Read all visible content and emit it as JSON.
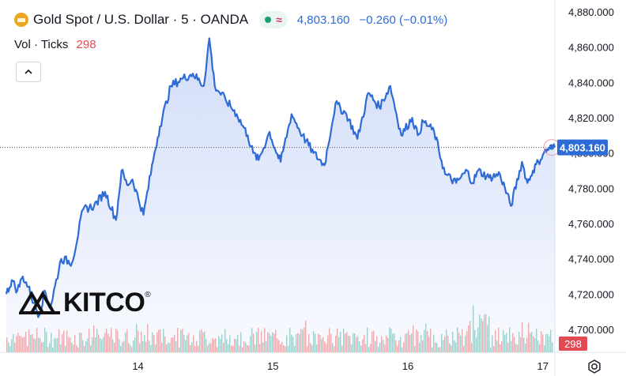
{
  "header": {
    "symbol_title": "Gold Spot / U.S. Dollar · 5 · OANDA",
    "last_price": "4,803.160",
    "change": "−0.260 (−0.01%)",
    "volume_label": "Vol · Ticks",
    "volume_value": "298"
  },
  "logo": {
    "text": "KITCO",
    "mark": "®"
  },
  "icons": [
    "gold-coin-icon",
    "market-status-dot-icon",
    "wave-icon",
    "chevron-up-icon",
    "kitco-logo-icon",
    "settings-gear-icon"
  ],
  "colors": {
    "line": "#2e6bd6",
    "area_top": "#c9d6f7",
    "vol_up": "#7fbfb4",
    "vol_down": "#e8908f",
    "price_tag": "#2e6bd6",
    "vol_tag": "#e14a52"
  },
  "chart_data": {
    "type": "area",
    "y_tick_labels": [
      "4,880.000",
      "4,860.000",
      "4,840.000",
      "4,820.000",
      "4,800.000",
      "4,780.000",
      "4,760.000",
      "4,740.000",
      "4,720.000",
      "4,700.000"
    ],
    "ylim": [
      4690,
      4884
    ],
    "x_tick_labels": [
      "14",
      "15",
      "16",
      "17"
    ],
    "last_price_label": "4,803.160",
    "last_volume_label": "298",
    "series": [
      {
        "x": [
          0,
          0.01,
          0.02,
          0.03,
          0.04,
          0.05,
          0.06,
          0.07,
          0.08,
          0.1,
          0.12,
          0.14,
          0.16,
          0.18,
          0.2,
          0.21,
          0.22,
          0.23,
          0.25,
          0.27,
          0.28,
          0.3,
          0.32,
          0.34,
          0.36,
          0.37,
          0.38,
          0.4,
          0.42,
          0.44,
          0.45,
          0.46,
          0.48,
          0.49,
          0.5,
          0.52,
          0.54,
          0.56,
          0.58,
          0.6,
          0.62,
          0.64,
          0.66,
          0.68,
          0.7,
          0.72,
          0.74,
          0.75,
          0.76,
          0.78,
          0.8,
          0.82,
          0.84,
          0.85,
          0.86,
          0.88,
          0.9,
          0.92,
          0.94,
          0.95,
          0.96,
          0.97,
          0.98,
          0.99,
          1.0
        ],
        "values": [
          4720,
          4728,
          4722,
          4730,
          4724,
          4715,
          4708,
          4722,
          4712,
          4740,
          4738,
          4768,
          4770,
          4778,
          4762,
          4790,
          4782,
          4785,
          4765,
          4800,
          4815,
          4838,
          4842,
          4845,
          4838,
          4865,
          4838,
          4830,
          4822,
          4810,
          4800,
          4796,
          4812,
          4802,
          4795,
          4822,
          4810,
          4800,
          4793,
          4828,
          4822,
          4808,
          4834,
          4826,
          4838,
          4810,
          4820,
          4810,
          4818,
          4812,
          4788,
          4783,
          4790,
          4783,
          4790,
          4786,
          4788,
          4770,
          4795,
          4783,
          4790,
          4795,
          4800,
          4803,
          4803.16
        ]
      }
    ],
    "volume_min": 0,
    "volume_max": 298
  }
}
